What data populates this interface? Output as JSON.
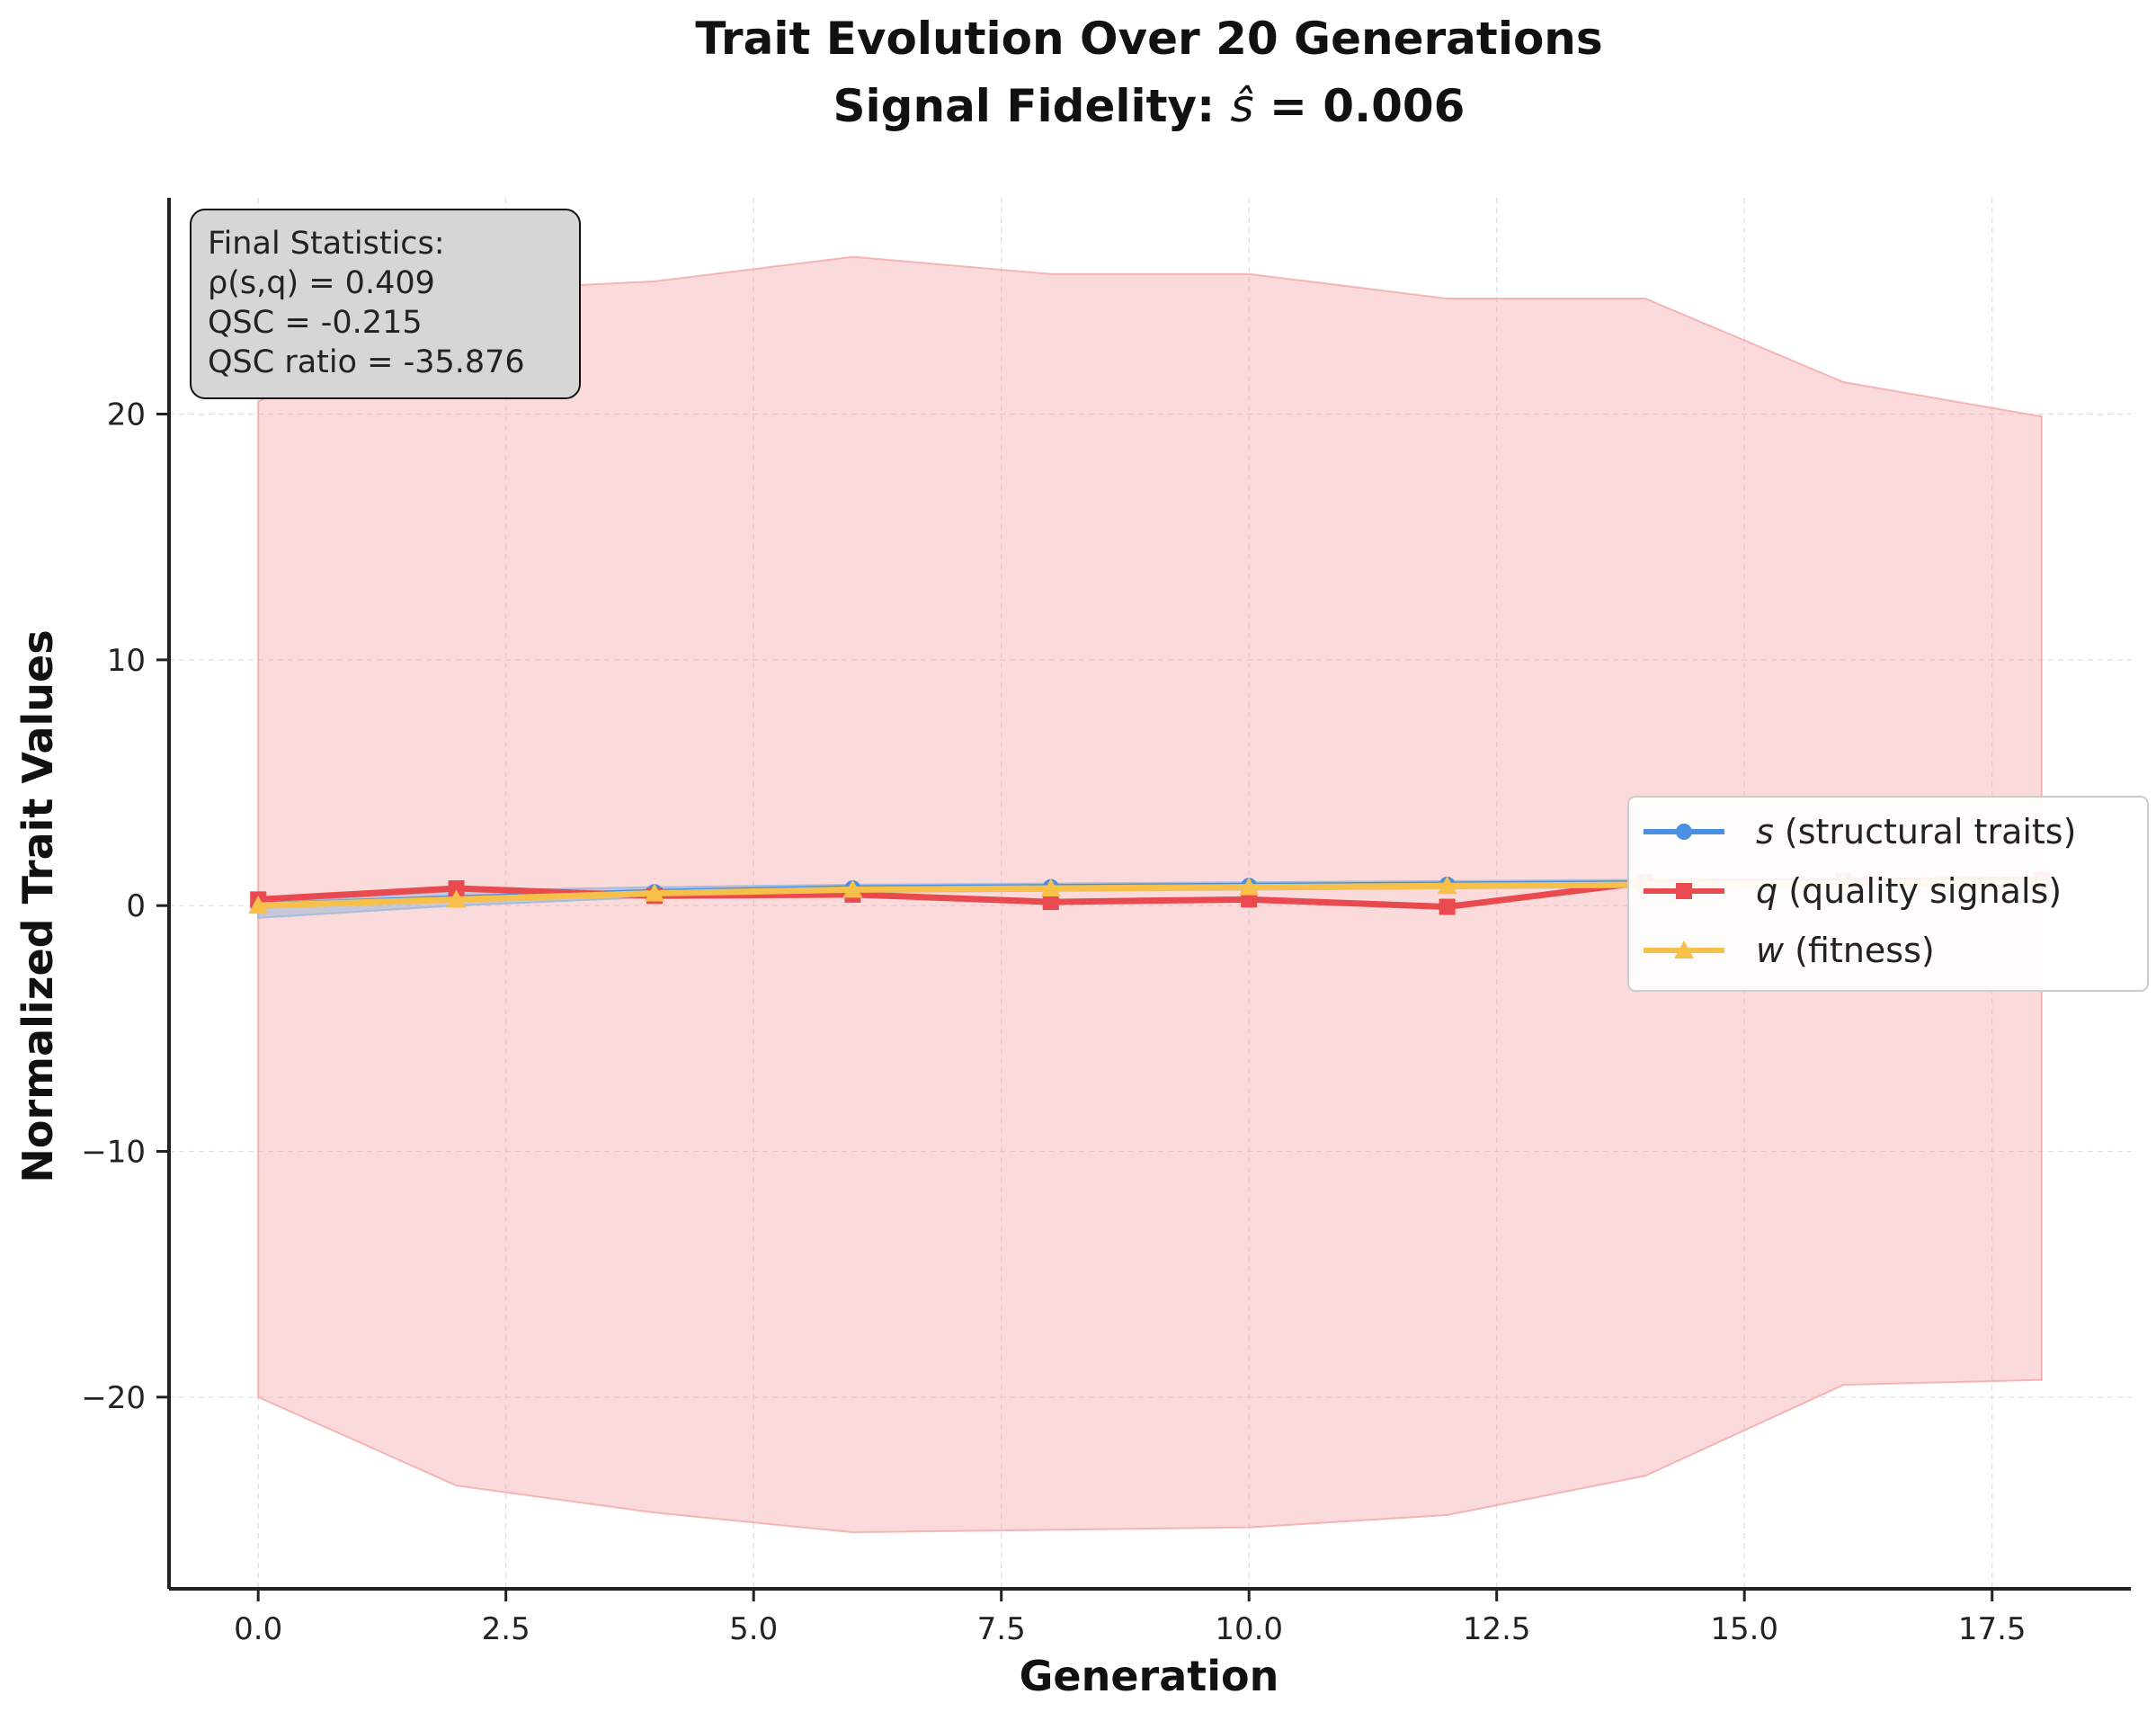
{
  "chart_data": {
    "type": "line",
    "title": "Trait Evolution Over 20 Generations",
    "subtitle_prefix": "Signal Fidelity: ",
    "subtitle_symbol": "ŝ",
    "subtitle_suffix": " = 0.006",
    "xlabel": "Generation",
    "ylabel": "Normalized Trait Values",
    "xlim": [
      -0.9,
      18.9
    ],
    "ylim": [
      -27.8,
      28.8
    ],
    "xticks": [
      0.0,
      2.5,
      5.0,
      7.5,
      10.0,
      12.5,
      15.0,
      17.5
    ],
    "xtick_labels": [
      "0.0",
      "2.5",
      "5.0",
      "7.5",
      "10.0",
      "12.5",
      "15.0",
      "17.5"
    ],
    "yticks": [
      -20,
      -10,
      0,
      10,
      20
    ],
    "ytick_labels": [
      "−20",
      "−10",
      "0",
      "10",
      "20"
    ],
    "grid": true,
    "legend_position": "center-right",
    "x": [
      0,
      2,
      4,
      6,
      8,
      10,
      12,
      14,
      16,
      18
    ],
    "series": [
      {
        "name_symbol": "s",
        "name_rest": " (structural traits)",
        "color": "#4a90e2",
        "marker": "circle",
        "values": [
          0.0,
          0.3,
          0.55,
          0.7,
          0.75,
          0.8,
          0.85,
          0.9,
          0.95,
          1.0
        ]
      },
      {
        "name_symbol": "q",
        "name_rest": " (quality signals)",
        "color": "#e84a4f",
        "marker": "square",
        "values": [
          0.25,
          0.7,
          0.4,
          0.45,
          0.15,
          0.25,
          -0.05,
          0.95,
          1.0,
          1.05
        ]
      },
      {
        "name_symbol": "w",
        "name_rest": " (fitness)",
        "color": "#f7c04a",
        "marker": "triangle",
        "values": [
          0.0,
          0.25,
          0.5,
          0.65,
          0.7,
          0.75,
          0.8,
          0.85,
          0.9,
          0.95
        ]
      }
    ],
    "bands": [
      {
        "color": "#f4a6a8",
        "upper": [
          20.5,
          25.0,
          25.4,
          26.4,
          25.7,
          25.7,
          24.7,
          24.7,
          21.3,
          19.9
        ],
        "lower": [
          -20.0,
          -23.6,
          -24.7,
          -25.5,
          -25.4,
          -25.3,
          -24.8,
          -23.2,
          -19.5,
          -19.3
        ]
      },
      {
        "color": "#9ab8d8",
        "upper": [
          0.1,
          0.6,
          0.75,
          0.85,
          0.9,
          0.95,
          1.0,
          1.05,
          1.1,
          1.15
        ],
        "lower": [
          -0.5,
          0.0,
          0.35,
          0.55,
          0.6,
          0.65,
          0.7,
          0.75,
          0.8,
          0.85
        ]
      }
    ],
    "annotation": {
      "lines": [
        "Final Statistics:",
        "ρ(s,q) = 0.409",
        "QSC = -0.215",
        "QSC ratio = -35.876"
      ]
    }
  }
}
